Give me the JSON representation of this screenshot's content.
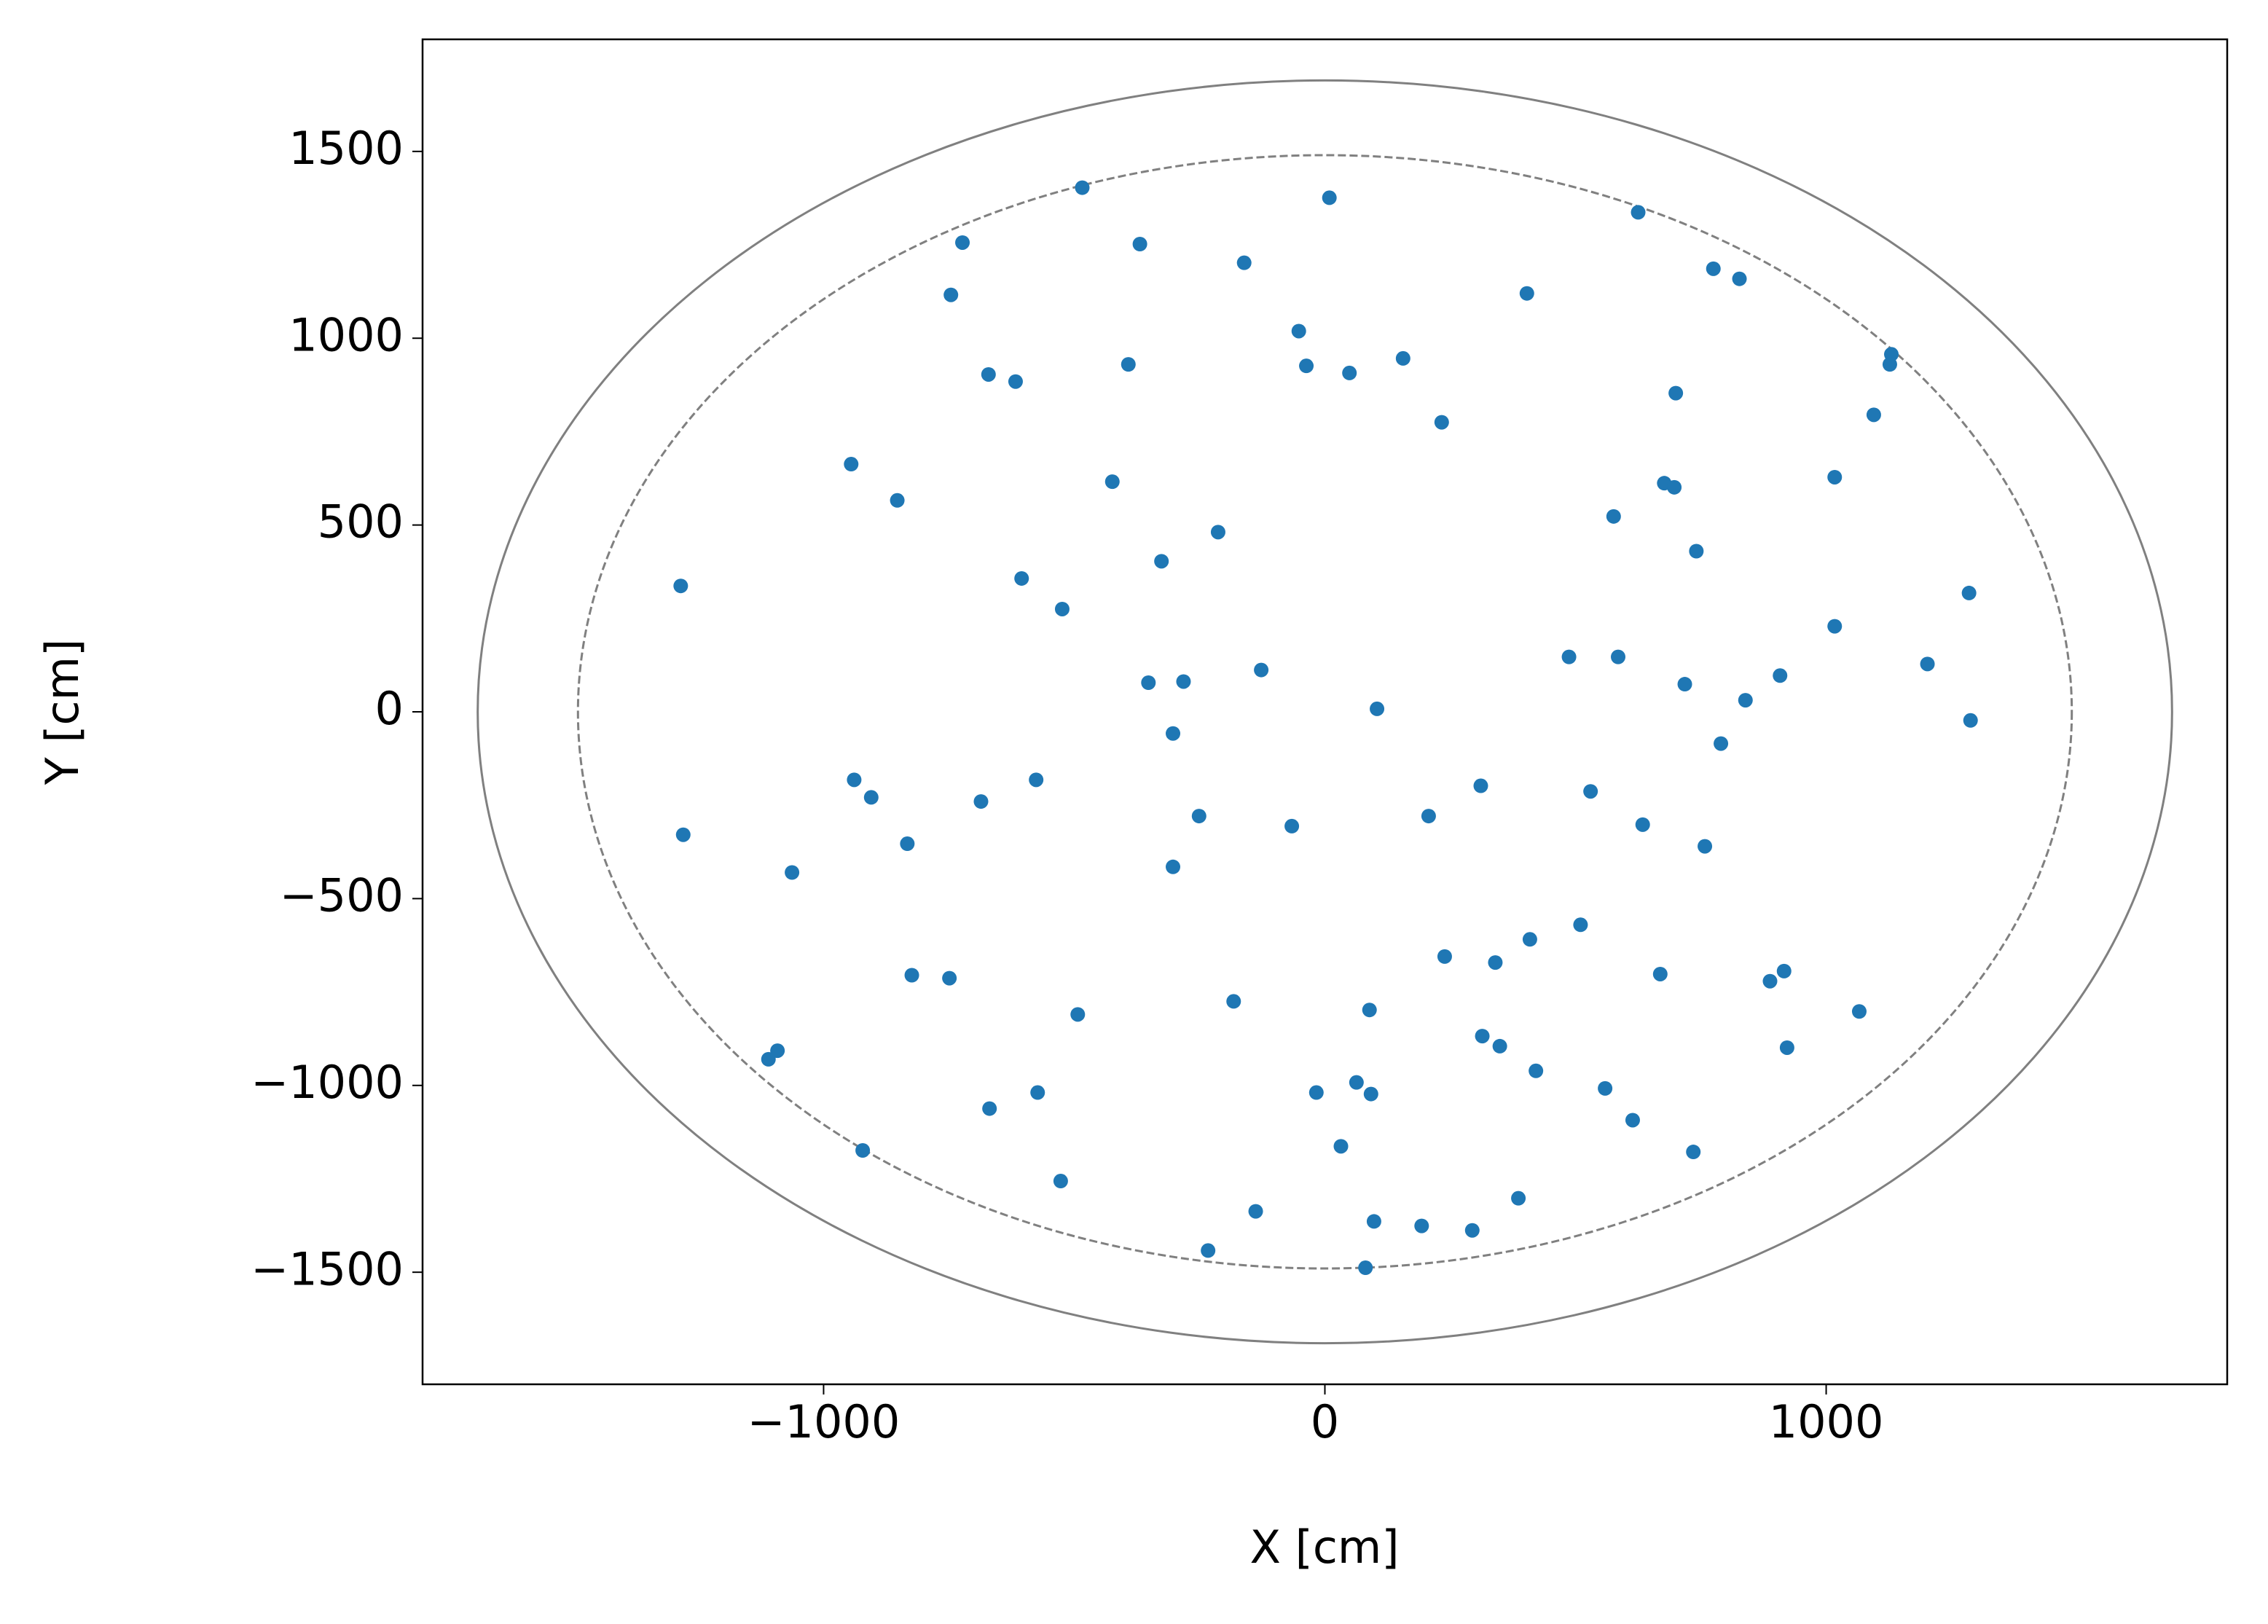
{
  "chart_data": {
    "type": "scatter",
    "xlabel": "X [cm]",
    "ylabel": "Y [cm]",
    "color": "#1f77b4",
    "xlim": [
      -1800,
      1800
    ],
    "ylim": [
      -1800,
      1800
    ],
    "xticks": [
      {
        "value": -1000,
        "label": "−1000"
      },
      0,
      1000
    ],
    "yticks": [
      {
        "value": -1500,
        "label": "−1500"
      },
      {
        "value": -1000,
        "label": "−1000"
      },
      {
        "value": -500,
        "label": "−500"
      },
      0,
      500,
      1000,
      1500
    ],
    "circles": [
      {
        "radius": 1690,
        "style": "solid",
        "color": "#808080"
      },
      {
        "radius": 1490,
        "style": "dashed",
        "color": "#808080"
      }
    ],
    "x": [
      -484,
      9,
      -723,
      -369,
      -161,
      625,
      -746,
      403,
      775,
      827,
      -52,
      -37,
      49,
      156,
      -392,
      -671,
      -617,
      1130,
      1127,
      700,
      233,
      1095,
      -945,
      -424,
      -853,
      677,
      697,
      1017,
      576,
      -213,
      741,
      -326,
      -1285,
      -605,
      -524,
      1285,
      1017,
      487,
      585,
      -127,
      -352,
      -282,
      718,
      908,
      1202,
      839,
      104,
      1288,
      -303,
      790,
      -939,
      -576,
      311,
      530,
      -905,
      -686,
      -251,
      207,
      -66,
      634,
      -1280,
      -833,
      758,
      -1063,
      -303,
      510,
      409,
      239,
      340,
      -824,
      -749,
      669,
      888,
      916,
      -182,
      89,
      -493,
      1066,
      314,
      349,
      922,
      -1092,
      -1110,
      421,
      63,
      -17,
      92,
      -573,
      559,
      -669,
      614,
      -922,
      735,
      32,
      -527,
      386,
      -138,
      98,
      193,
      294,
      -233,
      81
    ],
    "values": [
      1403,
      1376,
      1256,
      1252,
      1202,
      1337,
      1116,
      1120,
      1186,
      1159,
      1019,
      926,
      907,
      946,
      930,
      903,
      884,
      957,
      930,
      853,
      775,
      795,
      663,
      616,
      566,
      612,
      601,
      628,
      523,
      481,
      430,
      403,
      337,
      357,
      275,
      318,
      229,
      147,
      147,
      112,
      78,
      81,
      74,
      97,
      128,
      31,
      8,
      -23,
      -58,
      -85,
      -182,
      -182,
      -198,
      -213,
      -229,
      -240,
      -279,
      -279,
      -306,
      -302,
      -329,
      -353,
      -360,
      -430,
      -415,
      -570,
      -609,
      -655,
      -671,
      -705,
      -713,
      -702,
      -721,
      -694,
      -775,
      -798,
      -810,
      -802,
      -868,
      -895,
      -899,
      -907,
      -930,
      -961,
      -992,
      -1019,
      -1023,
      -1019,
      -1008,
      -1062,
      -1093,
      -1174,
      -1178,
      -1163,
      -1256,
      -1302,
      -1337,
      -1364,
      -1376,
      -1388,
      -1442,
      -1488
    ]
  }
}
